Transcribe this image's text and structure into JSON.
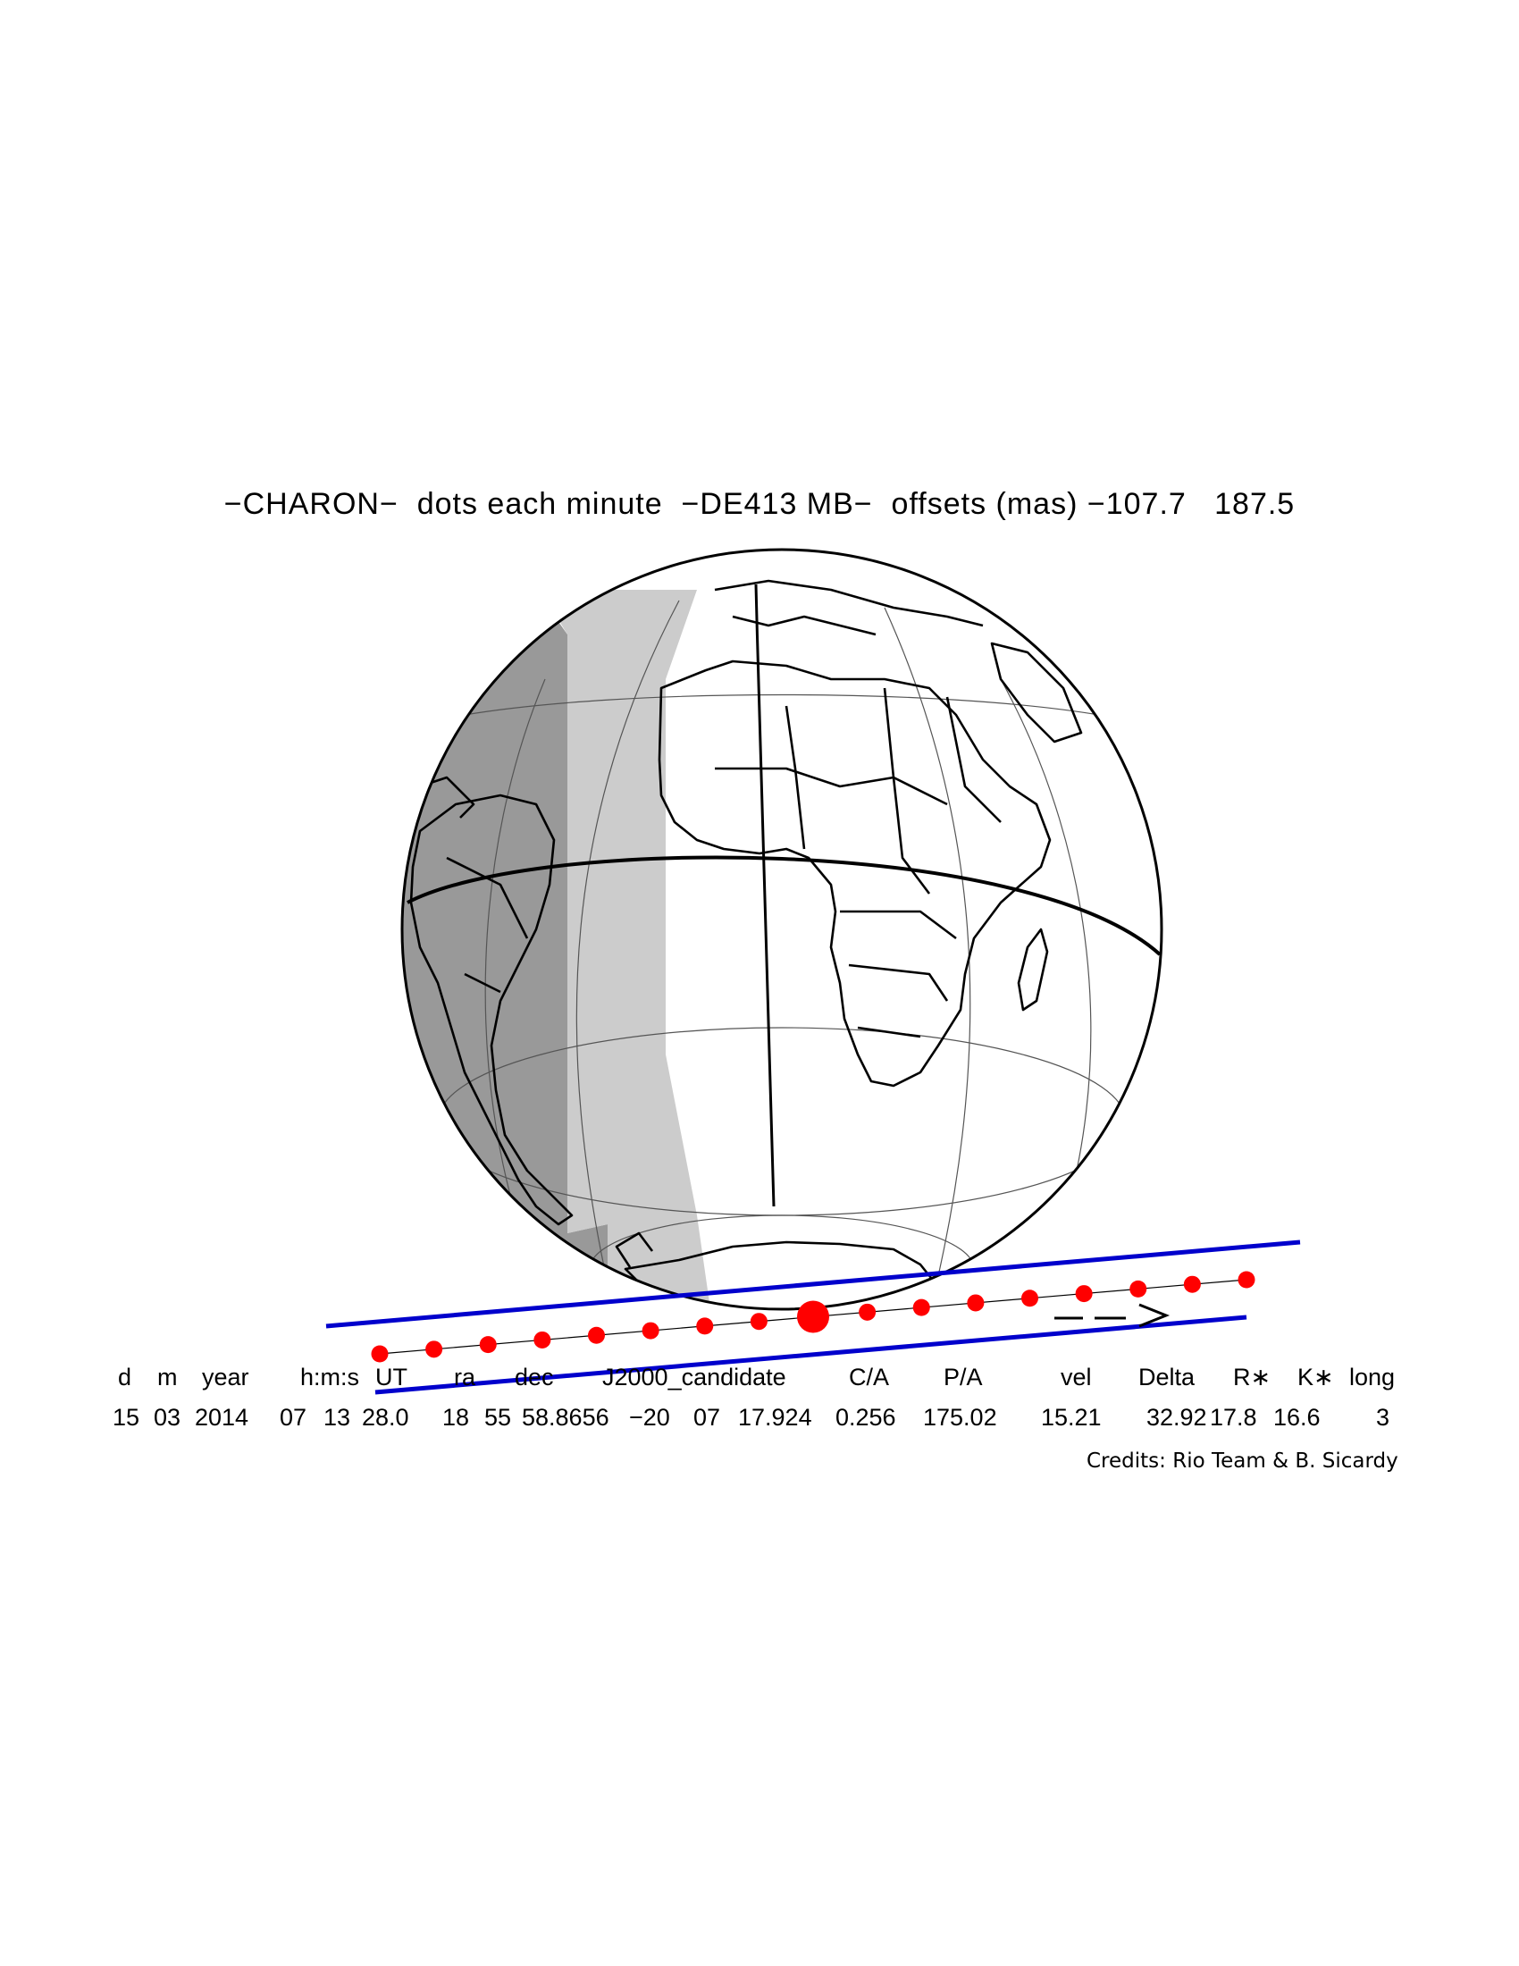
{
  "title": "−CHARON−  dots each minute  −DE413 MB−  offsets (mas) −107.7   187.5",
  "table": {
    "headers": [
      "d",
      "m",
      "year",
      "h:m:s",
      "UT",
      "ra",
      "dec",
      "J2000_candidate",
      "C/A",
      "P/A",
      "vel",
      "Delta",
      "R∗",
      "K∗",
      "long"
    ],
    "values": [
      "15",
      "03",
      "2014",
      "07",
      "13",
      "28.0",
      "18",
      "55",
      "58.8656",
      "−20",
      "07",
      "17.924",
      "0.256",
      "175.02",
      "15.21",
      "32.92",
      "17.8",
      "16.6",
      "3"
    ]
  },
  "credits": "Credits: Rio Team & B. Sicardy",
  "colors": {
    "path_dots": "#ff0000",
    "shadow_limits": "#0000cc",
    "night_dark": "#999999",
    "night_twilight": "#cccccc",
    "outline": "#000000"
  }
}
